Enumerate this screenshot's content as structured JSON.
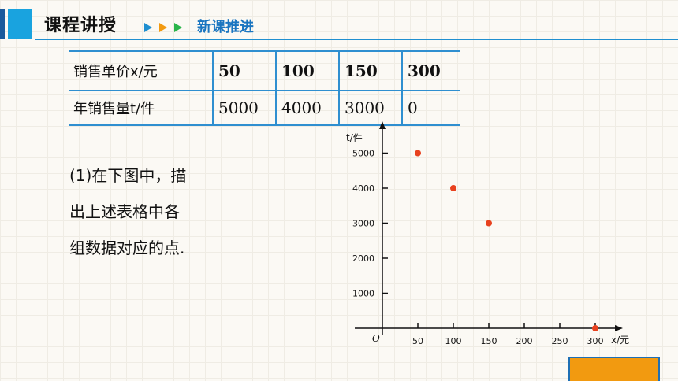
{
  "header": {
    "title": "课程讲授",
    "subtitle": "新课推进",
    "arrow_colors": [
      "#1f8fd0",
      "#f29a10",
      "#2ab54a"
    ],
    "accent": "#19a3df"
  },
  "table": {
    "rows": [
      {
        "label": "销售单价x/元",
        "values": [
          "50",
          "100",
          "150",
          "300"
        ]
      },
      {
        "label": "年销售量t/件",
        "values": [
          "5000",
          "4000",
          "3000",
          "0"
        ]
      }
    ]
  },
  "question": {
    "lines": [
      "(1)在下图中，描",
      "出上述表格中各",
      "组数据对应的点."
    ]
  },
  "chart_data": {
    "type": "scatter",
    "xlabel": "x/元",
    "ylabel": "t/件",
    "origin_label": "O",
    "x_ticks": [
      50,
      100,
      150,
      200,
      250,
      300
    ],
    "y_ticks": [
      1000,
      2000,
      3000,
      4000,
      5000
    ],
    "points": [
      {
        "x": 50,
        "y": 5000
      },
      {
        "x": 100,
        "y": 4000
      },
      {
        "x": 150,
        "y": 3000
      },
      {
        "x": 300,
        "y": 0
      }
    ],
    "point_color": "#e8411e"
  }
}
